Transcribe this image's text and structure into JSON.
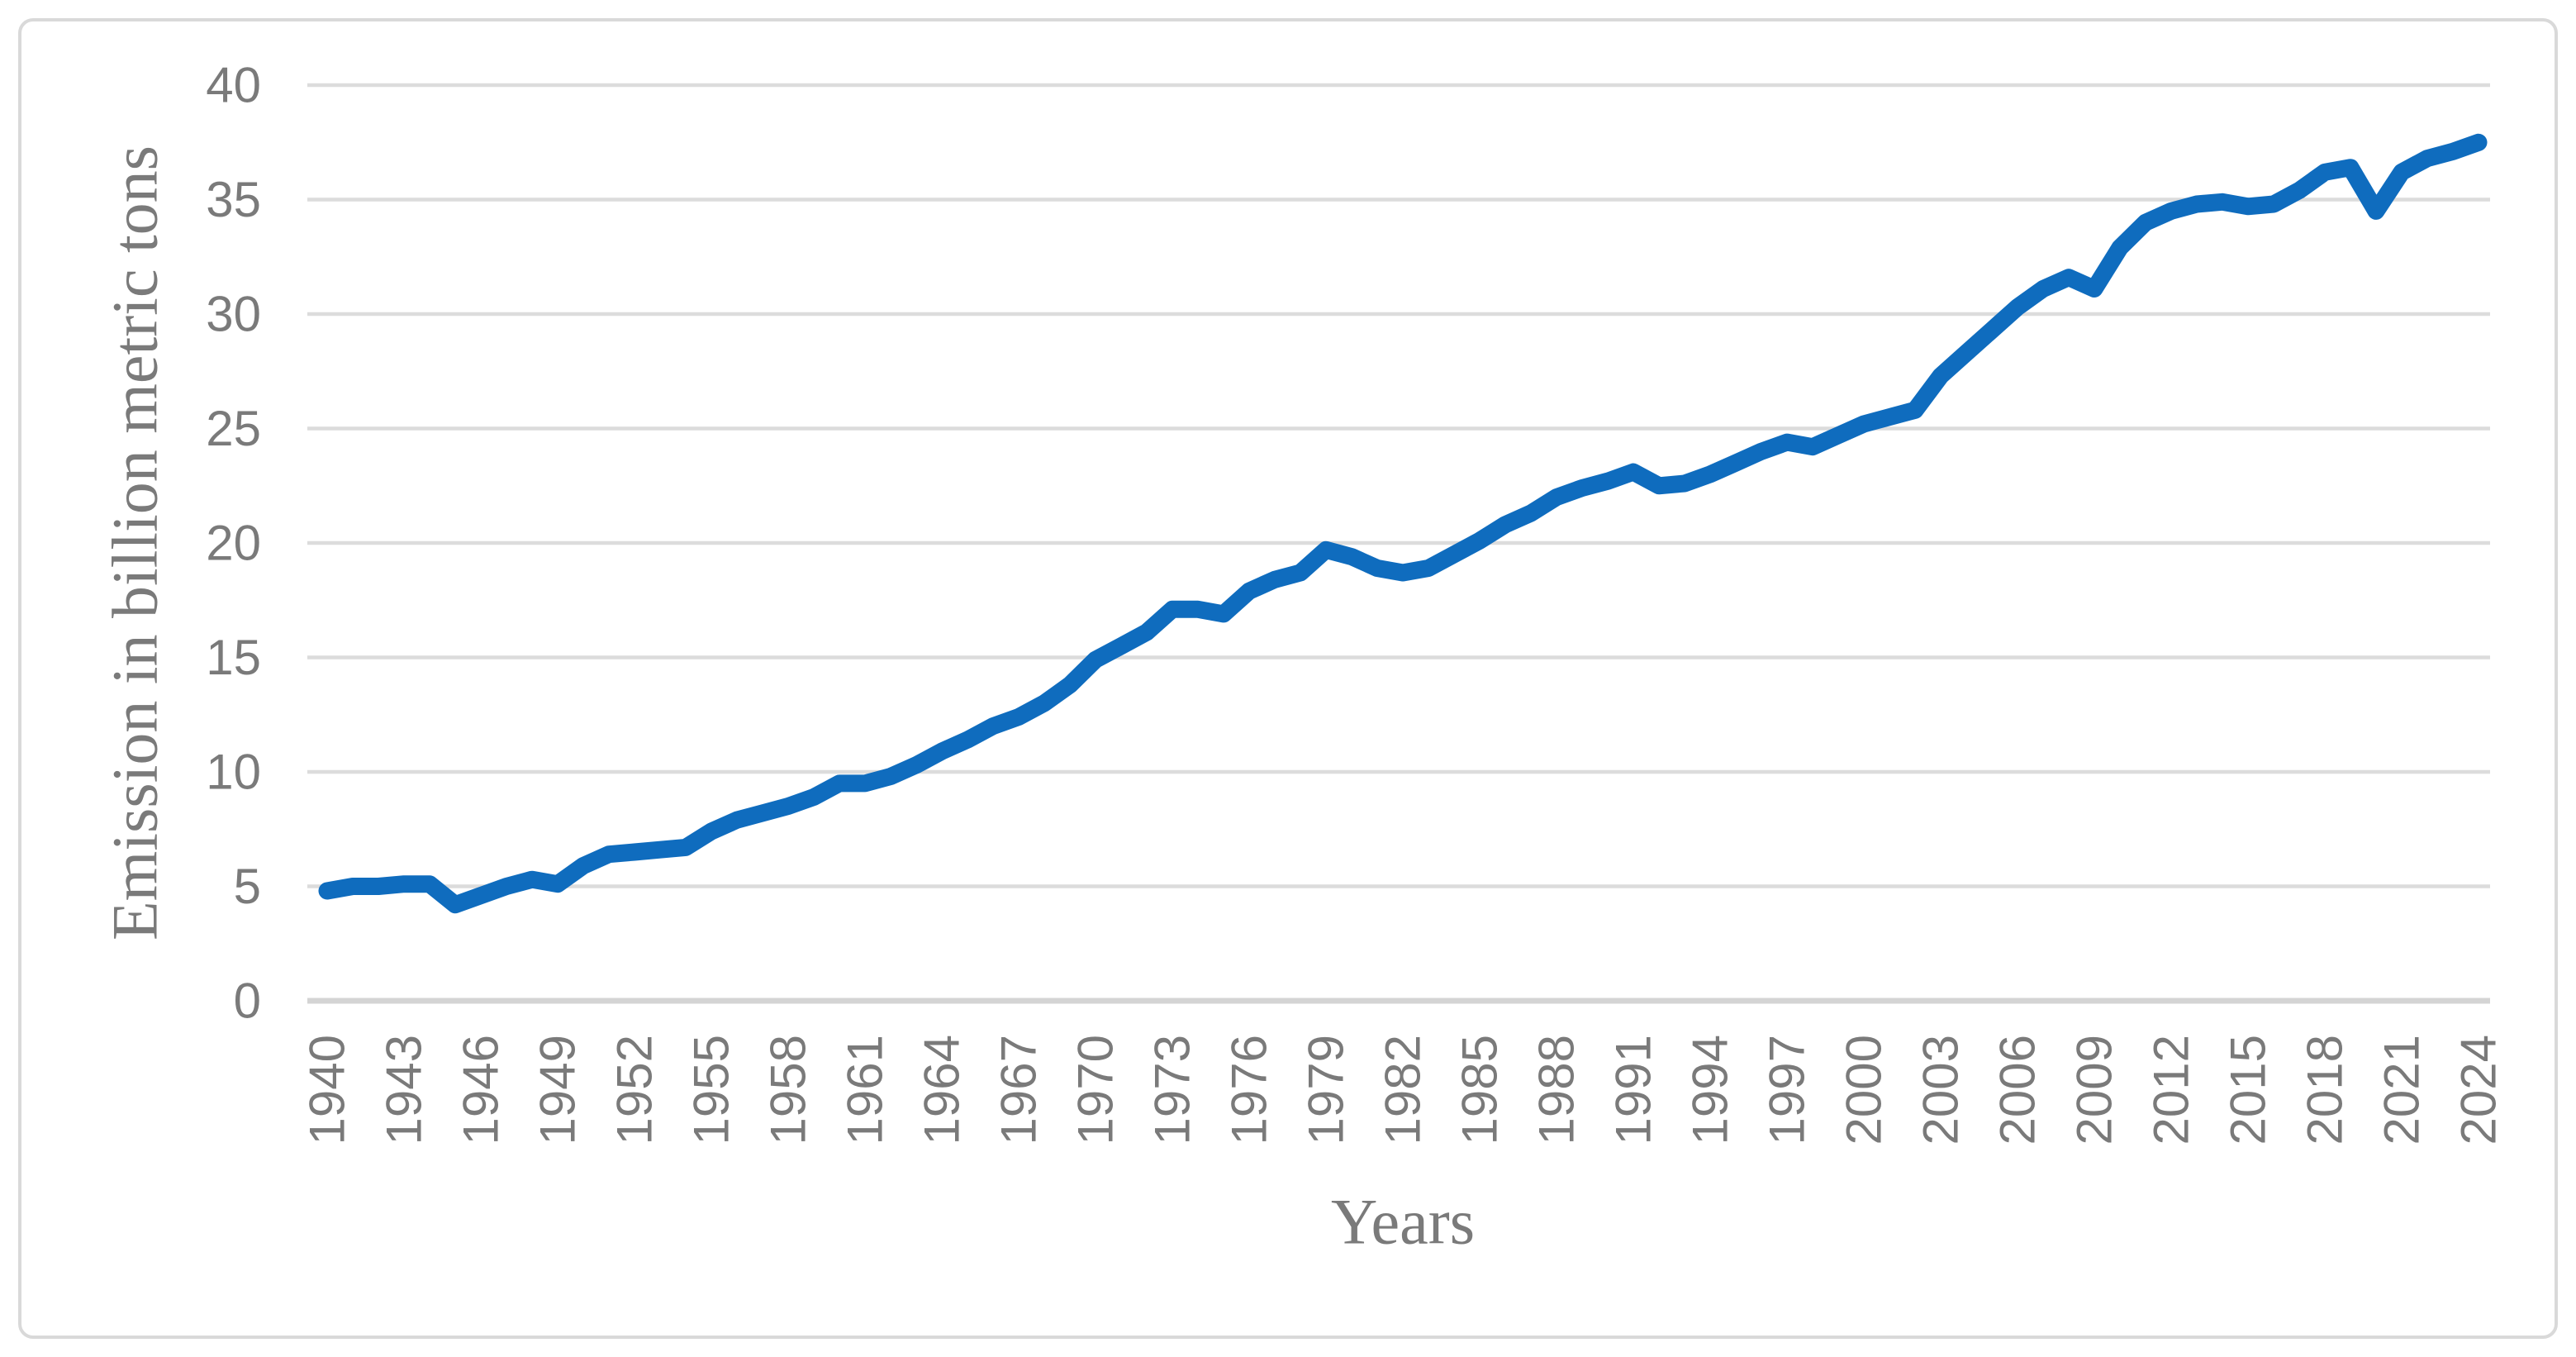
{
  "figure": {
    "background": "#FFFFFF",
    "border_color": "#D9D9D9"
  },
  "chart_data": {
    "type": "line",
    "title": "",
    "xlabel": "Years",
    "ylabel": "Emission in billion metric tons",
    "x": [
      1940,
      1941,
      1942,
      1943,
      1944,
      1945,
      1946,
      1947,
      1948,
      1949,
      1950,
      1951,
      1952,
      1953,
      1954,
      1955,
      1956,
      1957,
      1958,
      1959,
      1960,
      1961,
      1962,
      1963,
      1964,
      1965,
      1966,
      1967,
      1968,
      1969,
      1970,
      1971,
      1972,
      1973,
      1974,
      1975,
      1976,
      1977,
      1978,
      1979,
      1980,
      1981,
      1982,
      1983,
      1984,
      1985,
      1986,
      1987,
      1988,
      1989,
      1990,
      1991,
      1992,
      1993,
      1994,
      1995,
      1996,
      1997,
      1998,
      1999,
      2000,
      2001,
      2002,
      2003,
      2004,
      2005,
      2006,
      2007,
      2008,
      2009,
      2010,
      2011,
      2012,
      2013,
      2014,
      2015,
      2016,
      2017,
      2018,
      2019,
      2020,
      2021,
      2022,
      2023,
      2024
    ],
    "values": [
      4.8,
      5.0,
      5.0,
      5.1,
      5.1,
      4.2,
      4.6,
      5.0,
      5.3,
      5.1,
      5.9,
      6.4,
      6.5,
      6.6,
      6.7,
      7.4,
      7.9,
      8.2,
      8.5,
      8.9,
      9.5,
      9.5,
      9.8,
      10.3,
      10.9,
      11.4,
      12.0,
      12.4,
      13.0,
      13.8,
      14.9,
      15.5,
      16.1,
      17.1,
      17.1,
      16.9,
      17.9,
      18.4,
      18.7,
      19.7,
      19.4,
      18.9,
      18.7,
      18.9,
      19.5,
      20.1,
      20.8,
      21.3,
      22.0,
      22.4,
      22.7,
      23.1,
      22.5,
      22.6,
      23.0,
      23.5,
      24.0,
      24.4,
      24.2,
      24.7,
      25.2,
      25.5,
      25.8,
      27.3,
      28.3,
      29.3,
      30.3,
      31.1,
      31.6,
      31.1,
      32.9,
      34.0,
      34.5,
      34.8,
      34.9,
      34.7,
      34.8,
      35.4,
      36.2,
      36.4,
      34.5,
      36.2,
      36.8,
      37.1,
      37.5
    ],
    "x_tick_labels": [
      "1940",
      "1943",
      "1946",
      "1949",
      "1952",
      "1955",
      "1958",
      "1961",
      "1964",
      "1967",
      "1970",
      "1973",
      "1976",
      "1979",
      "1982",
      "1985",
      "1988",
      "1991",
      "1994",
      "1997",
      "2000",
      "2003",
      "2006",
      "2009",
      "2012",
      "2015",
      "2018",
      "2021",
      "2024"
    ],
    "y_ticks": [
      0,
      5,
      10,
      15,
      20,
      25,
      30,
      35,
      40
    ],
    "ylim": [
      0,
      40
    ],
    "grid": true,
    "legend": "none",
    "line_color": "#0F6CBE",
    "gridline_color": "#DCDCDC",
    "axis_line_color": "#D4D4D4",
    "tick_label_color": "#7A7A7A",
    "axis_title_color": "#7A7A7A"
  }
}
